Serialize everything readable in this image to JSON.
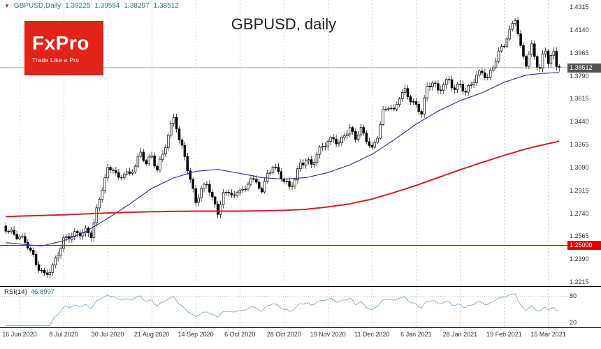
{
  "header": {
    "symbol_info": "GBPUSD,Daily",
    "ohlc": {
      "open": "1.39225",
      "high": "1.39584",
      "low": "1.38297",
      "close": "1.38512"
    },
    "title": "GBPUSD, daily"
  },
  "logo": {
    "name": "FxPro",
    "tagline": "Trade Like a Pro",
    "bg": "#e2231a"
  },
  "chart_data": {
    "type": "candlestick",
    "symbol": "GBPUSD",
    "timeframe": "daily",
    "title": "GBPUSD, daily",
    "current_price": "1.38512",
    "price_axis": {
      "min": 1.2215,
      "max": 1.4315,
      "labels": [
        "1.4315",
        "1.4140",
        "1.3965",
        "1.3790",
        "1.3615",
        "1.3440",
        "1.3265",
        "1.3090",
        "1.2915",
        "1.2740",
        "1.2565",
        "1.2390",
        "1.2215"
      ]
    },
    "x_axis": {
      "dates": [
        "16 Jun 2020",
        "8 Jul 2020",
        "30 Jul 2020",
        "21 Aug 2020",
        "14 Sep 2020",
        "6 Oct 2020",
        "28 Oct 2020",
        "19 Nov 2020",
        "11 Dec 2020",
        "6 Jan 2021",
        "28 Jan 2021",
        "19 Feb 2021",
        "15 Mar 2021"
      ]
    },
    "support_line": {
      "price": 1.25,
      "label": "1.25000",
      "color": "#e00000"
    },
    "close_waypoints": [
      [
        -5,
        1.2635
      ],
      [
        0,
        1.256
      ],
      [
        3,
        1.248
      ],
      [
        6,
        1.235
      ],
      [
        9,
        1.228
      ],
      [
        12,
        1.234
      ],
      [
        16,
        1.252
      ],
      [
        20,
        1.258
      ],
      [
        24,
        1.262
      ],
      [
        26,
        1.258
      ],
      [
        28,
        1.275
      ],
      [
        30,
        1.292
      ],
      [
        32,
        1.306
      ],
      [
        34,
        1.309
      ],
      [
        36,
        1.301
      ],
      [
        38,
        1.307
      ],
      [
        40,
        1.303
      ],
      [
        42,
        1.31
      ],
      [
        44,
        1.318
      ],
      [
        46,
        1.312
      ],
      [
        48,
        1.318
      ],
      [
        50,
        1.309
      ],
      [
        52,
        1.32
      ],
      [
        54,
        1.333
      ],
      [
        56,
        1.346
      ],
      [
        57,
        1.339
      ],
      [
        58,
        1.328
      ],
      [
        60,
        1.318
      ],
      [
        62,
        1.3
      ],
      [
        64,
        1.285
      ],
      [
        66,
        1.292
      ],
      [
        68,
        1.297
      ],
      [
        70,
        1.283
      ],
      [
        72,
        1.274
      ],
      [
        74,
        1.288
      ],
      [
        76,
        1.293
      ],
      [
        78,
        1.287
      ],
      [
        80,
        1.294
      ],
      [
        82,
        1.289
      ],
      [
        84,
        1.301
      ],
      [
        86,
        1.295
      ],
      [
        88,
        1.293
      ],
      [
        90,
        1.304
      ],
      [
        92,
        1.312
      ],
      [
        94,
        1.304
      ],
      [
        96,
        1.298
      ],
      [
        98,
        1.292
      ],
      [
        100,
        1.3
      ],
      [
        102,
        1.313
      ],
      [
        104,
        1.316
      ],
      [
        106,
        1.312
      ],
      [
        108,
        1.318
      ],
      [
        110,
        1.324
      ],
      [
        112,
        1.327
      ],
      [
        114,
        1.332
      ],
      [
        116,
        1.328
      ],
      [
        118,
        1.336
      ],
      [
        120,
        1.338
      ],
      [
        122,
        1.331
      ],
      [
        124,
        1.336
      ],
      [
        126,
        1.33
      ],
      [
        128,
        1.323
      ],
      [
        130,
        1.335
      ],
      [
        132,
        1.352
      ],
      [
        134,
        1.356
      ],
      [
        136,
        1.35
      ],
      [
        138,
        1.362
      ],
      [
        140,
        1.367
      ],
      [
        142,
        1.362
      ],
      [
        144,
        1.357
      ],
      [
        146,
        1.352
      ],
      [
        148,
        1.369
      ],
      [
        150,
        1.373
      ],
      [
        152,
        1.366
      ],
      [
        154,
        1.373
      ],
      [
        156,
        1.377
      ],
      [
        158,
        1.37
      ],
      [
        160,
        1.373
      ],
      [
        162,
        1.365
      ],
      [
        164,
        1.371
      ],
      [
        166,
        1.378
      ],
      [
        168,
        1.383
      ],
      [
        170,
        1.378
      ],
      [
        172,
        1.388
      ],
      [
        174,
        1.396
      ],
      [
        176,
        1.402
      ],
      [
        178,
        1.411
      ],
      [
        180,
        1.423
      ],
      [
        181,
        1.412
      ],
      [
        182,
        1.401
      ],
      [
        183,
        1.395
      ],
      [
        184,
        1.39
      ],
      [
        185,
        1.397
      ],
      [
        186,
        1.402
      ],
      [
        187,
        1.394
      ],
      [
        188,
        1.387
      ],
      [
        189,
        1.383
      ],
      [
        190,
        1.392
      ],
      [
        191,
        1.397
      ],
      [
        192,
        1.389
      ],
      [
        193,
        1.393
      ],
      [
        194,
        1.396
      ],
      [
        195,
        1.388
      ],
      [
        196,
        1.38512
      ]
    ],
    "ma_fast": {
      "name": "50-period moving average",
      "color": "#2929a3",
      "points": [
        [
          -5,
          1.2515
        ],
        [
          0,
          1.2505
        ],
        [
          8,
          1.249
        ],
        [
          16,
          1.253
        ],
        [
          24,
          1.26
        ],
        [
          32,
          1.27
        ],
        [
          40,
          1.281
        ],
        [
          48,
          1.293
        ],
        [
          56,
          1.301
        ],
        [
          64,
          1.306
        ],
        [
          72,
          1.3075
        ],
        [
          80,
          1.3045
        ],
        [
          88,
          1.3012
        ],
        [
          96,
          1.3
        ],
        [
          104,
          1.3012
        ],
        [
          112,
          1.305
        ],
        [
          120,
          1.311
        ],
        [
          128,
          1.319
        ],
        [
          136,
          1.33
        ],
        [
          144,
          1.342
        ],
        [
          152,
          1.352
        ],
        [
          160,
          1.36
        ],
        [
          168,
          1.366
        ],
        [
          176,
          1.374
        ],
        [
          184,
          1.3795
        ],
        [
          190,
          1.3808
        ],
        [
          196,
          1.3815
        ]
      ]
    },
    "ma_slow": {
      "name": "200-period moving average",
      "color": "#d42020",
      "points": [
        [
          -5,
          1.2715
        ],
        [
          0,
          1.2718
        ],
        [
          16,
          1.2728
        ],
        [
          32,
          1.2742
        ],
        [
          48,
          1.2752
        ],
        [
          64,
          1.2756
        ],
        [
          80,
          1.2756
        ],
        [
          96,
          1.2762
        ],
        [
          104,
          1.277
        ],
        [
          112,
          1.2788
        ],
        [
          120,
          1.2812
        ],
        [
          128,
          1.2848
        ],
        [
          136,
          1.2898
        ],
        [
          144,
          1.2952
        ],
        [
          152,
          1.3012
        ],
        [
          160,
          1.3072
        ],
        [
          168,
          1.3128
        ],
        [
          176,
          1.3182
        ],
        [
          184,
          1.3232
        ],
        [
          190,
          1.3262
        ],
        [
          196,
          1.329
        ]
      ]
    },
    "rsi": {
      "label": "RSI(14)",
      "value": "46.8997",
      "period": 14,
      "levels": [
        80,
        20
      ],
      "color": "#86b4d2"
    }
  }
}
